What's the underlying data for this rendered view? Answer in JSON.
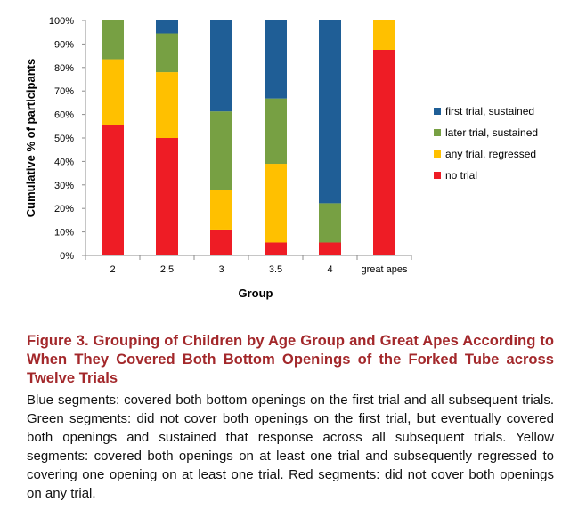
{
  "chart_data": {
    "type": "bar",
    "stacked": true,
    "xlabel": "Group",
    "ylabel": "Cumulative % of participants",
    "ylim": [
      0,
      100
    ],
    "yticks": [
      "0%",
      "10%",
      "20%",
      "30%",
      "40%",
      "50%",
      "60%",
      "70%",
      "80%",
      "90%",
      "100%"
    ],
    "categories": [
      "2",
      "2.5",
      "3",
      "3.5",
      "4",
      "great apes"
    ],
    "legend_position": "right",
    "grid": false,
    "series": [
      {
        "name": "no trial",
        "color": "#ee1c25",
        "values": [
          55.5,
          50,
          11,
          5.5,
          5.5,
          87.5
        ]
      },
      {
        "name": "any trial, regressed",
        "color": "#ffc000",
        "values": [
          28,
          28,
          16.8,
          33.5,
          0,
          12.5
        ]
      },
      {
        "name": "later trial, sustained",
        "color": "#77a043",
        "values": [
          16.5,
          16.5,
          33.5,
          27.8,
          16.7,
          0
        ]
      },
      {
        "name": "first trial, sustained",
        "color": "#1f5e96",
        "values": [
          0,
          5.5,
          38.7,
          33.2,
          77.8,
          0
        ]
      }
    ]
  },
  "caption": {
    "title": "Figure 3. Grouping of Children by Age Group and Great Apes According to When They Covered Both Bottom Openings of the Forked Tube across Twelve Trials",
    "body": "Blue segments: covered both bottom openings on the first trial and all subsequent trials. Green segments: did not cover both openings on the first trial, but eventually covered both openings and sustained that response across all subsequent trials. Yellow segments: covered both openings on at least one trial and subsequently regressed to covering one opening on at least one trial. Red segments: did not cover both openings on any trial."
  }
}
